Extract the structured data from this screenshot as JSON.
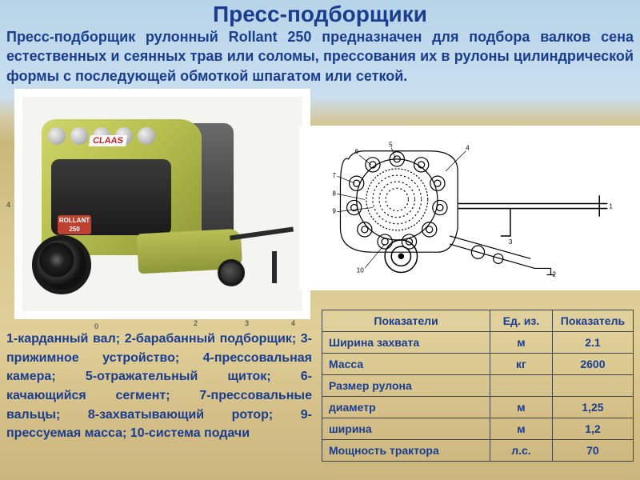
{
  "title": "Пресс-подборщики",
  "intro": "Пресс-подборщик рулонный Rollant 250 предназначен для подбора валков сена естественных и сеянных трав или соломы, прессования их в рулоны цилиндрической формы с последующей обмоткой шпагатом или сеткой.",
  "photo": {
    "brand": "CLAAS",
    "model_badge_top": "ROLLANT",
    "model_badge_num": "250",
    "axis_y": "4",
    "axis_0": "0",
    "axis_x1": "2",
    "axis_x2": "3",
    "axis_x3": "4"
  },
  "legend": "1-карданный вал; 2-барабанный подборщик; 3-прижимное устройство; 4-прессовальная камера; 5-отражательный щиток; 6-качающийся сегмент; 7-прессовальные вальцы; 8-захватывающий ротор; 9-прессуемая масса; 10-система подачи",
  "table": {
    "headers": [
      "Показатели",
      "Ед. из.",
      "Показатель"
    ],
    "rows": [
      {
        "label": "Ширина захвата",
        "unit": "м",
        "value": "2.1"
      },
      {
        "label": "Масса",
        "unit": "кг",
        "value": "2600"
      },
      {
        "label": "Размер рулона",
        "unit": "",
        "value": ""
      },
      {
        "label": "диаметр",
        "unit": "м",
        "value": "1,25"
      },
      {
        "label": "ширина",
        "unit": "м",
        "value": "1,2"
      },
      {
        "label": "Мощность трактора",
        "unit": "л.с.",
        "value": "70"
      }
    ],
    "colors": {
      "text": "#1a3d8f",
      "border": "#444444"
    }
  }
}
